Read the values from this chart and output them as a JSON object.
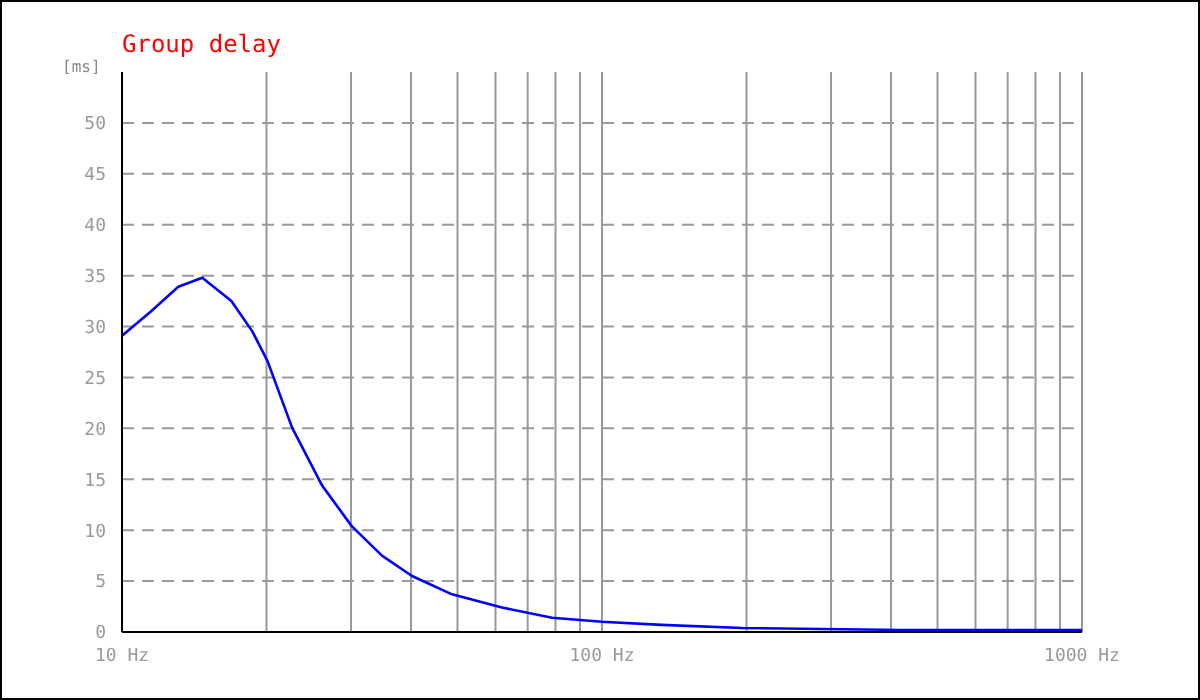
{
  "chart_data": {
    "type": "line",
    "title": "Group delay",
    "ylabel": "[ms]",
    "log": "x",
    "grid": true,
    "legend": false,
    "marker": "none",
    "line_style": "solid",
    "xlim": [
      10,
      1000
    ],
    "ylim": [
      0,
      55
    ],
    "xticks": [
      {
        "value": 10,
        "label": "10 Hz"
      },
      {
        "value": 20,
        "label": null
      },
      {
        "value": 30,
        "label": null
      },
      {
        "value": 40,
        "label": null
      },
      {
        "value": 50,
        "label": null
      },
      {
        "value": 60,
        "label": null
      },
      {
        "value": 70,
        "label": null
      },
      {
        "value": 80,
        "label": null
      },
      {
        "value": 90,
        "label": null
      },
      {
        "value": 100,
        "label": "100 Hz"
      },
      {
        "value": 200,
        "label": null
      },
      {
        "value": 300,
        "label": null
      },
      {
        "value": 400,
        "label": null
      },
      {
        "value": 500,
        "label": null
      },
      {
        "value": 600,
        "label": null
      },
      {
        "value": 700,
        "label": null
      },
      {
        "value": 800,
        "label": null
      },
      {
        "value": 900,
        "label": null
      },
      {
        "value": 1000,
        "label": "1000 Hz"
      }
    ],
    "yticks": [
      0,
      5,
      10,
      15,
      20,
      25,
      30,
      35,
      40,
      45,
      50
    ],
    "x": [
      10,
      11.5,
      13.1,
      14.7,
      16.9,
      18.7,
      20.1,
      22.6,
      26.1,
      30.1,
      34.8,
      40.2,
      48.7,
      61.9,
      78.7,
      100,
      133,
      196,
      422,
      1000
    ],
    "series": [
      {
        "color": "#0000ff",
        "values": [
          29.1,
          31.5,
          33.9,
          34.8,
          32.5,
          29.5,
          26.6,
          20.1,
          14.4,
          10.4,
          7.5,
          5.5,
          3.7,
          2.4,
          1.4,
          1.0,
          0.7,
          0.4,
          0.2,
          0.2
        ]
      }
    ]
  }
}
